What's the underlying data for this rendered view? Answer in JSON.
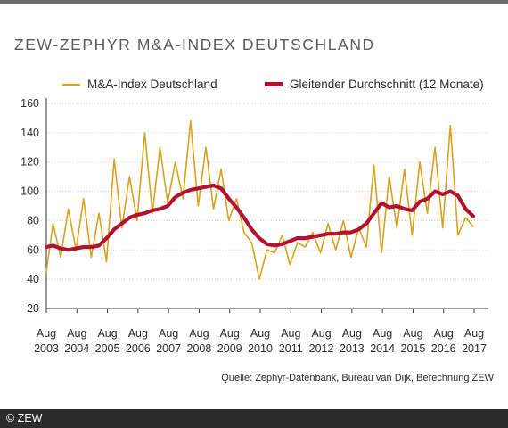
{
  "header": {
    "title": "ZEW-ZEPHYR M&A-INDEX DEUTSCHLAND"
  },
  "source": "Quelle: Zephyr-Datenbank, Bureau van Dijk, Berechnung ZEW",
  "footer": {
    "copyright": "© ZEW"
  },
  "colors": {
    "index": "#d9a21c",
    "average": "#b3122f",
    "axis": "#333333",
    "grid": "#cfcfcf"
  },
  "chart_data": {
    "type": "line",
    "title": "ZEW-ZEPHYR M&A-INDEX DEUTSCHLAND",
    "xlabel": "",
    "ylabel": "",
    "ylim": [
      20,
      160
    ],
    "yticks": [
      20,
      40,
      60,
      80,
      100,
      120,
      140,
      160
    ],
    "grid": "horizontal dotted",
    "legend_position": "top",
    "x_tick_labels": [
      [
        "Aug",
        "2003"
      ],
      [
        "Aug",
        "2004"
      ],
      [
        "Aug",
        "2005"
      ],
      [
        "Aug",
        "2006"
      ],
      [
        "Aug",
        "2007"
      ],
      [
        "Aug",
        "2008"
      ],
      [
        "Aug",
        "2009"
      ],
      [
        "Aug",
        "2010"
      ],
      [
        "Aug",
        "2011"
      ],
      [
        "Aug",
        "2012"
      ],
      [
        "Aug",
        "2013"
      ],
      [
        "Aug",
        "2014"
      ],
      [
        "Aug",
        "2015"
      ],
      [
        "Aug",
        "2016"
      ],
      [
        "Aug",
        "2017"
      ]
    ],
    "series": [
      {
        "name": "M&A-Index Deutschland",
        "x": [
          2003.58,
          2003.8,
          2004.05,
          2004.3,
          2004.55,
          2004.8,
          2005.05,
          2005.3,
          2005.55,
          2005.8,
          2006.05,
          2006.3,
          2006.55,
          2006.8,
          2007.05,
          2007.3,
          2007.55,
          2007.8,
          2008.05,
          2008.3,
          2008.55,
          2008.8,
          2009.05,
          2009.3,
          2009.55,
          2009.8,
          2010.05,
          2010.3,
          2010.55,
          2010.8,
          2011.05,
          2011.3,
          2011.55,
          2011.8,
          2012.05,
          2012.3,
          2012.55,
          2012.8,
          2013.05,
          2013.3,
          2013.55,
          2013.8,
          2014.05,
          2014.3,
          2014.55,
          2014.8,
          2015.05,
          2015.3,
          2015.55,
          2015.8,
          2016.05,
          2016.3,
          2016.55,
          2016.8,
          2017.05,
          2017.3,
          2017.55
        ],
        "y": [
          45,
          78,
          55,
          88,
          60,
          95,
          55,
          85,
          52,
          122,
          75,
          110,
          80,
          140,
          85,
          130,
          92,
          120,
          95,
          148,
          90,
          130,
          88,
          115,
          80,
          95,
          72,
          65,
          40,
          60,
          58,
          70,
          50,
          65,
          62,
          72,
          58,
          78,
          60,
          80,
          55,
          75,
          62,
          118,
          58,
          110,
          75,
          115,
          70,
          120,
          85,
          130,
          75,
          145,
          70,
          82,
          76
        ]
      },
      {
        "name": "Gleitender Durchschnitt (12 Monate)",
        "x": [
          2003.58,
          2003.8,
          2004.05,
          2004.3,
          2004.55,
          2004.8,
          2005.05,
          2005.3,
          2005.55,
          2005.8,
          2006.05,
          2006.3,
          2006.55,
          2006.8,
          2007.05,
          2007.3,
          2007.55,
          2007.8,
          2008.05,
          2008.3,
          2008.55,
          2008.8,
          2009.05,
          2009.3,
          2009.55,
          2009.8,
          2010.05,
          2010.3,
          2010.55,
          2010.8,
          2011.05,
          2011.3,
          2011.55,
          2011.8,
          2012.05,
          2012.3,
          2012.55,
          2012.8,
          2013.05,
          2013.3,
          2013.55,
          2013.8,
          2014.05,
          2014.3,
          2014.55,
          2014.8,
          2015.05,
          2015.3,
          2015.55,
          2015.8,
          2016.05,
          2016.3,
          2016.55,
          2016.8,
          2017.05,
          2017.3,
          2017.55
        ],
        "y": [
          62,
          63,
          61,
          60,
          61,
          62,
          62,
          63,
          68,
          74,
          78,
          82,
          84,
          85,
          87,
          88,
          90,
          96,
          99,
          101,
          102,
          103,
          104,
          102,
          95,
          89,
          82,
          74,
          68,
          64,
          63,
          64,
          66,
          68,
          68,
          69,
          70,
          71,
          71,
          72,
          72,
          74,
          78,
          85,
          92,
          89,
          90,
          88,
          87,
          93,
          95,
          100,
          98,
          100,
          97,
          88,
          83
        ]
      }
    ]
  }
}
